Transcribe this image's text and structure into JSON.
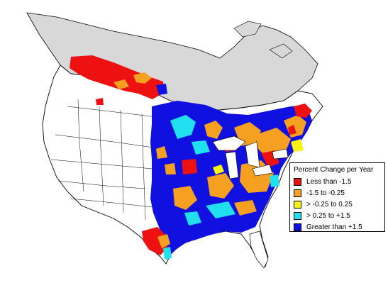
{
  "legend": {
    "title": "Percent Change per Year",
    "items": [
      {
        "label": "Less than -1.5",
        "color": "#ee1111"
      },
      {
        "label": "-1.5 to -0.25",
        "color": "#f5a020"
      },
      {
        "label": "> -0.25 to 0.25",
        "color": "#f8f210"
      },
      {
        "label": "> 0.25 to +1.5",
        "color": "#20e0f0"
      },
      {
        "label": "Greater than +1.5",
        "color": "#1010e0"
      }
    ]
  },
  "colors": {
    "no_data_region": "#d8d8d8",
    "outline": "#000000",
    "background": "#ffffff"
  }
}
